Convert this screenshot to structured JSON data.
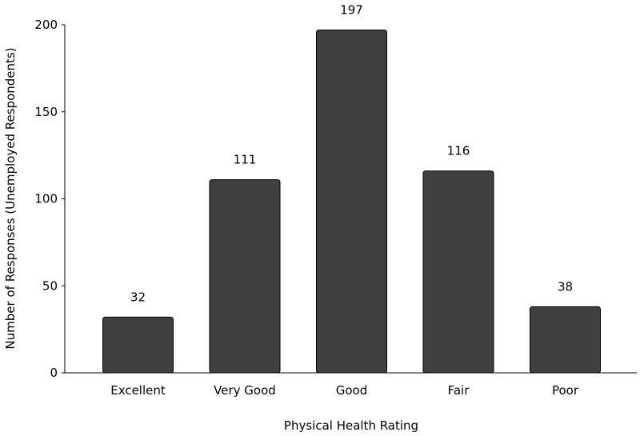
{
  "chart_data": {
    "type": "bar",
    "categories": [
      "Excellent",
      "Very Good",
      "Good",
      "Fair",
      "Poor"
    ],
    "values": [
      32,
      111,
      197,
      116,
      38
    ],
    "data_labels": [
      "32",
      "111",
      "197",
      "116",
      "38"
    ],
    "xlabel": "Physical Health Rating",
    "ylabel": "Number of Responses (Unemployed Respondents)",
    "ylim": [
      0,
      200
    ],
    "yticks": [
      0,
      50,
      100,
      150,
      200
    ],
    "ytick_labels": [
      "0",
      "50",
      "100",
      "150",
      "200"
    ],
    "grid": false,
    "bar_color": "#404040",
    "bar_edge_color": "#000000"
  }
}
